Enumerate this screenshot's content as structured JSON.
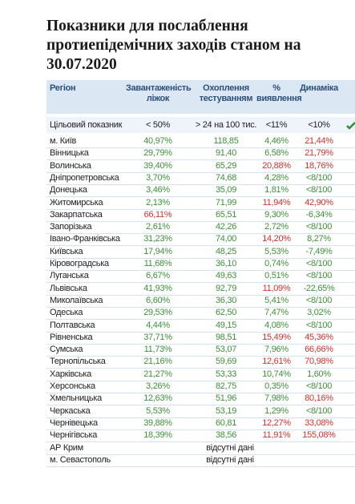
{
  "header": {
    "title": [
      "Показники для послаблення",
      "протиепідемічних заходів станом на",
      "30.07.2020"
    ]
  },
  "table": {
    "columns": [
      "Регіон",
      "Завантаженість ліжок",
      "Охоплення тестуванням",
      "% виявлення",
      "Динаміка"
    ],
    "target": [
      "Цільовий показник",
      "< 50%",
      "> 24 на 100 тис.",
      "<11%",
      "<10%"
    ],
    "rows": [
      {
        "cells": [
          "м. Київ",
          "40,97%",
          "118,85",
          "4,46%",
          "21,44%"
        ],
        "alert": [
          4
        ]
      },
      {
        "cells": [
          "Вінницька",
          "29,79%",
          "91,40",
          "6,58%",
          "21,79%"
        ],
        "alert": [
          4
        ]
      },
      {
        "cells": [
          "Волинська",
          "39,40%",
          "65,29",
          "20,88%",
          "18,76%"
        ],
        "alert": [
          3,
          4
        ]
      },
      {
        "cells": [
          "Дніпропетровська",
          "3,70%",
          "74,68",
          "4,28%",
          "<8/100"
        ],
        "alert": []
      },
      {
        "cells": [
          "Донецька",
          "3,46%",
          "35,09",
          "1,81%",
          "<8/100"
        ],
        "alert": []
      },
      {
        "cells": [
          "Житомирська",
          "2,13%",
          "71,99",
          "11,94%",
          "42,90%"
        ],
        "alert": [
          3,
          4
        ]
      },
      {
        "cells": [
          "Закарпатська",
          "66,11%",
          "65,51",
          "9,30%",
          "-6,34%"
        ],
        "alert": [
          1
        ]
      },
      {
        "cells": [
          "Запорізька",
          "2,61%",
          "42,26",
          "2,72%",
          "<8/100"
        ],
        "alert": []
      },
      {
        "cells": [
          "Івано-Франківська",
          "31,23%",
          "74,00",
          "14,20%",
          "8,27%"
        ],
        "alert": [
          3
        ]
      },
      {
        "cells": [
          "Київська",
          "17,94%",
          "48,25",
          "5,53%",
          "-7,49%"
        ],
        "alert": []
      },
      {
        "cells": [
          "Кіровоградська",
          "11,68%",
          "36,10",
          "0,74%",
          "<8/100"
        ],
        "alert": []
      },
      {
        "cells": [
          "Луганська",
          "6,67%",
          "49,63",
          "0,51%",
          "<8/100"
        ],
        "alert": []
      },
      {
        "cells": [
          "Львівська",
          "41,93%",
          "92,79",
          "11,09%",
          "-22,65%"
        ],
        "alert": [
          3
        ]
      },
      {
        "cells": [
          "Миколаївська",
          "6,60%",
          "36,30",
          "5,41%",
          "<8/100"
        ],
        "alert": []
      },
      {
        "cells": [
          "Одеська",
          "29,53%",
          "62,50",
          "7,47%",
          "3,02%"
        ],
        "alert": []
      },
      {
        "cells": [
          "Полтавська",
          "4,44%",
          "49,15",
          "4,08%",
          "<8/100"
        ],
        "alert": []
      },
      {
        "cells": [
          "Рівненська",
          "37,71%",
          "98,51",
          "15,49%",
          "45,36%"
        ],
        "alert": [
          3,
          4
        ]
      },
      {
        "cells": [
          "Сумська",
          "11,73%",
          "53,07",
          "7,96%",
          "66,66%"
        ],
        "alert": [
          4
        ]
      },
      {
        "cells": [
          "Тернопільська",
          "21,16%",
          "59,69",
          "12,61%",
          "70,98%"
        ],
        "alert": [
          3,
          4
        ]
      },
      {
        "cells": [
          "Харківська",
          "21,27%",
          "53,33",
          "10,74%",
          "1,60%"
        ],
        "alert": []
      },
      {
        "cells": [
          "Херсонська",
          "3,26%",
          "82,75",
          "0,35%",
          "<8/100"
        ],
        "alert": []
      },
      {
        "cells": [
          "Хмельницька",
          "12,63%",
          "51,96",
          "7,98%",
          "80,16%"
        ],
        "alert": [
          4
        ]
      },
      {
        "cells": [
          "Черкаська",
          "5,53%",
          "53,19",
          "1,29%",
          "<8/100"
        ],
        "alert": []
      },
      {
        "cells": [
          "Чернівецька",
          "39,88%",
          "60,81",
          "12,27%",
          "33,08%"
        ],
        "alert": [
          3,
          4
        ]
      },
      {
        "cells": [
          "Чернігівська",
          "18,39%",
          "38,56",
          "11,91%",
          "155,08%"
        ],
        "alert": [
          3,
          4
        ]
      },
      {
        "cells": [
          "АР Крим",
          "відсутні дані"
        ],
        "alert": []
      },
      {
        "cells": [
          "м. Севастополь",
          "відсутні дані"
        ],
        "alert": []
      }
    ]
  }
}
